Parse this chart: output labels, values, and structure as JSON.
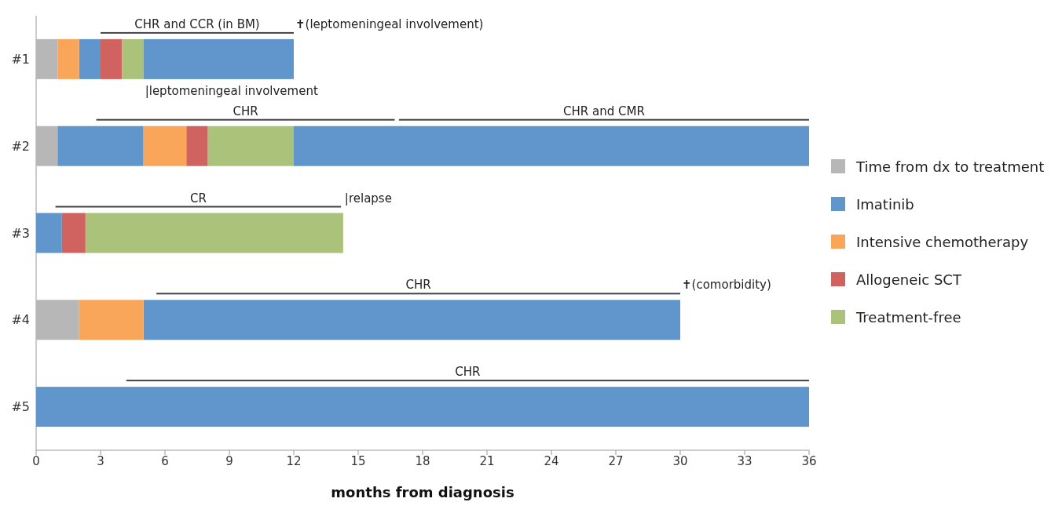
{
  "chart_data": {
    "type": "bar",
    "orientation": "horizontal",
    "xlabel": "months from diagnosis",
    "categories": [
      "#1",
      "#2",
      "#3",
      "#4",
      "#5"
    ],
    "xlim": [
      0,
      36
    ],
    "xticks": [
      0,
      3,
      6,
      9,
      12,
      15,
      18,
      21,
      24,
      27,
      30,
      33,
      36
    ],
    "legend": "right",
    "grid": false,
    "series": [
      {
        "name": "Time from dx to treatment",
        "color": "#b7b7b7",
        "base": [
          0,
          0,
          null,
          0,
          null
        ],
        "values": [
          1,
          1,
          null,
          2,
          null
        ]
      },
      {
        "name": "Imatinib",
        "color": "#6096cb",
        "base": [
          2,
          1,
          0,
          5,
          0
        ],
        "values": [
          1,
          4,
          1.2,
          25,
          36
        ]
      },
      {
        "name": "Intensive chemotherapy",
        "color": "#f9a65a",
        "base": [
          1,
          5,
          null,
          2,
          null
        ],
        "values": [
          1,
          2,
          null,
          3,
          null
        ]
      },
      {
        "name": "Allogeneic SCT",
        "color": "#d0635f",
        "base": [
          3,
          7,
          1.2,
          null,
          null
        ],
        "values": [
          1,
          1,
          1.1,
          null,
          null
        ]
      },
      {
        "name": "Treatment-free",
        "color": "#aac27a",
        "base": [
          4,
          8,
          2.3,
          null,
          null
        ],
        "values": [
          1,
          4,
          12,
          null,
          null
        ]
      },
      {
        "color": "#6096cb",
        "base": [
          5,
          12,
          null,
          null,
          null
        ],
        "values": [
          7,
          24,
          null,
          null,
          null
        ]
      },
      {
        "name": "CHR and CCR (in BM)",
        "color": "#444444",
        "line_style": "solid",
        "base": [
          3,
          null,
          null,
          null,
          null
        ],
        "values": [
          9,
          null,
          null,
          null,
          null
        ]
      },
      {
        "name": "CHR",
        "color": "#444444",
        "line_style": "solid",
        "base": [
          null,
          2.8,
          null,
          5.6,
          4.2
        ],
        "values": [
          null,
          13.9,
          null,
          24.4,
          31.8
        ]
      },
      {
        "name": "CHR and CMR",
        "color": "#444444",
        "line_style": "solid",
        "base": [
          null,
          16.9,
          null,
          null,
          null
        ],
        "values": [
          null,
          19.1,
          null,
          null,
          null
        ]
      },
      {
        "name": "CR",
        "color": "#444444",
        "line_style": "solid",
        "base": [
          null,
          null,
          0.9,
          null,
          null
        ],
        "values": [
          null,
          null,
          13.3,
          null,
          null
        ]
      }
    ],
    "annotations": [
      {
        "text": "✝(leptomeningeal involvement)",
        "x": 12,
        "y": "#1"
      },
      {
        "text": "|leptomeningeal involvement",
        "x": 5,
        "y": "#1"
      },
      {
        "text": "|relapse",
        "x": 14.3,
        "y": "#3"
      },
      {
        "text": "✝(comorbidity)",
        "x": 30,
        "y": "#4"
      }
    ]
  }
}
